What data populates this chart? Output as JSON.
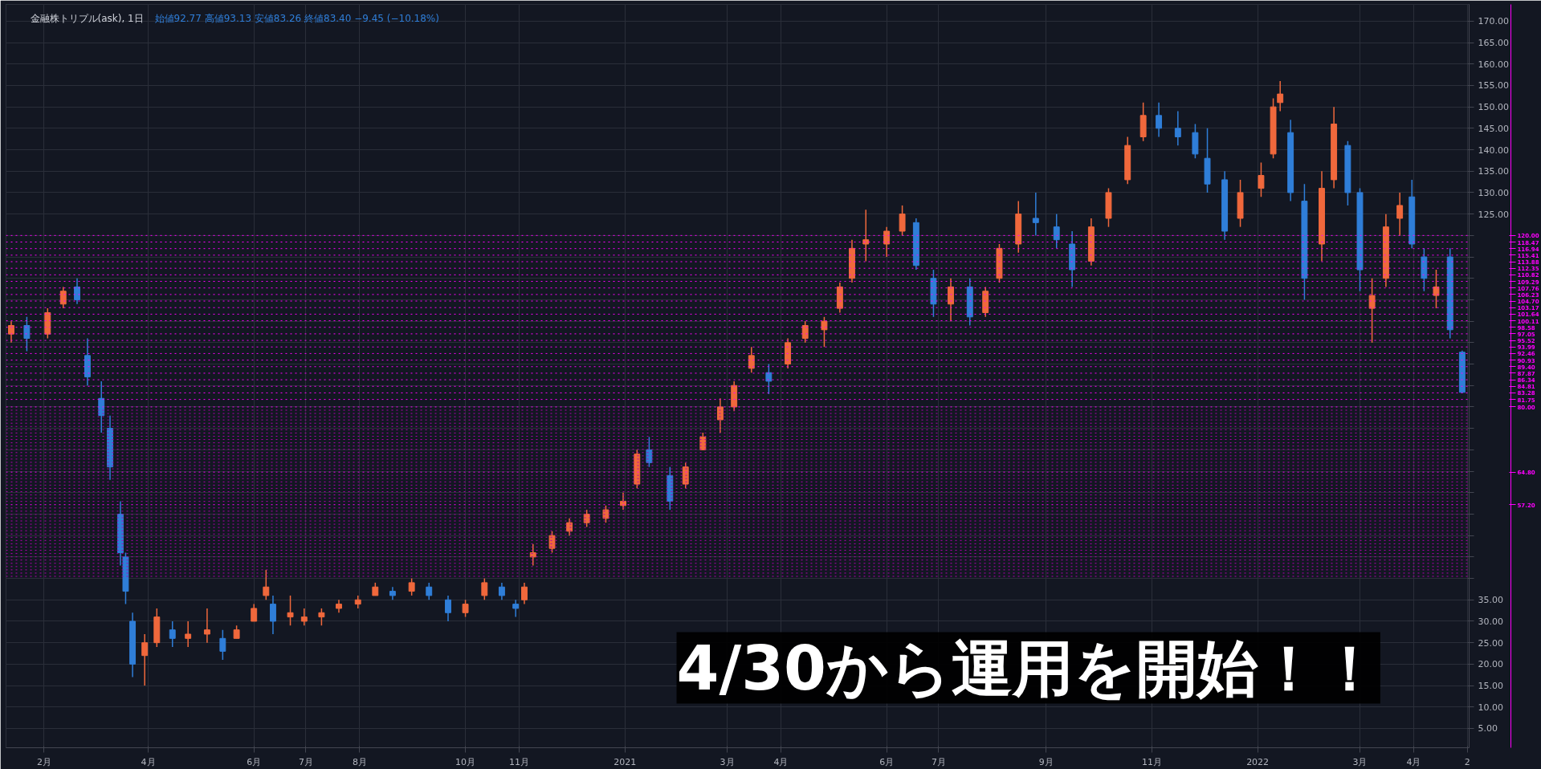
{
  "chart_data": {
    "type": "candlestick",
    "title": "金融株トリプル(ask), 1日",
    "subtitle": "始値92.77 高値93.13 安値83.26 終値83.40 −9.45 (−10.18%)",
    "annotations": [
      "4/30から運用を開始！！"
    ],
    "x": [
      "2020-01-13",
      "2020-01-22",
      "2020-02-03",
      "2020-02-12",
      "2020-02-20",
      "2020-02-26",
      "2020-03-05",
      "2020-03-10",
      "2020-03-16",
      "2020-03-19",
      "2020-03-23",
      "2020-03-30",
      "2020-04-06",
      "2020-04-15",
      "2020-04-24",
      "2020-05-05",
      "2020-05-14",
      "2020-05-22",
      "2020-06-01",
      "2020-06-08",
      "2020-06-12",
      "2020-06-22",
      "2020-06-30",
      "2020-07-10",
      "2020-07-20",
      "2020-07-31",
      "2020-08-10",
      "2020-08-20",
      "2020-08-31",
      "2020-09-10",
      "2020-09-21",
      "2020-10-01",
      "2020-10-12",
      "2020-10-22",
      "2020-10-30",
      "2020-11-04",
      "2020-11-09",
      "2020-11-20",
      "2020-11-30",
      "2020-12-10",
      "2020-12-21",
      "2020-12-31",
      "2021-01-08",
      "2021-01-15",
      "2021-01-27",
      "2021-02-05",
      "2021-02-15",
      "2021-02-25",
      "2021-03-05",
      "2021-03-15",
      "2021-03-25",
      "2021-04-05",
      "2021-04-15",
      "2021-04-26",
      "2021-05-05",
      "2021-05-12",
      "2021-05-20",
      "2021-06-01",
      "2021-06-10",
      "2021-06-18",
      "2021-06-28",
      "2021-07-08",
      "2021-07-19",
      "2021-07-28",
      "2021-08-05",
      "2021-08-16",
      "2021-08-26",
      "2021-09-07",
      "2021-09-16",
      "2021-09-27",
      "2021-10-07",
      "2021-10-18",
      "2021-10-27",
      "2021-11-05",
      "2021-11-16",
      "2021-11-26",
      "2021-12-03",
      "2021-12-13",
      "2021-12-22",
      "2022-01-03",
      "2022-01-10",
      "2022-01-14",
      "2022-01-20",
      "2022-01-28",
      "2022-02-07",
      "2022-02-14",
      "2022-02-22",
      "2022-03-01",
      "2022-03-08",
      "2022-03-16",
      "2022-03-24",
      "2022-03-31",
      "2022-04-07",
      "2022-04-14",
      "2022-04-22",
      "2022-04-29"
    ],
    "ohlc": [
      [
        97,
        100,
        95,
        99
      ],
      [
        99,
        101,
        93,
        96
      ],
      [
        97,
        103,
        96,
        102
      ],
      [
        104,
        108,
        103,
        107
      ],
      [
        108,
        110,
        104,
        105
      ],
      [
        92,
        96,
        85,
        87
      ],
      [
        82,
        86,
        74,
        78
      ],
      [
        75,
        78,
        63,
        66
      ],
      [
        55,
        58,
        43,
        46
      ],
      [
        45,
        46,
        34,
        37
      ],
      [
        30,
        32,
        17,
        20
      ],
      [
        22,
        27,
        15,
        25
      ],
      [
        25,
        33,
        24,
        31
      ],
      [
        28,
        30,
        24,
        26
      ],
      [
        26,
        30,
        24,
        27
      ],
      [
        27,
        33,
        25,
        28
      ],
      [
        26,
        28,
        21,
        23
      ],
      [
        26,
        29,
        26,
        28
      ],
      [
        30,
        34,
        30,
        33
      ],
      [
        36,
        42,
        35,
        38
      ],
      [
        34,
        36,
        27,
        30
      ],
      [
        31,
        36,
        29,
        32
      ],
      [
        30,
        33,
        29,
        31
      ],
      [
        31,
        33,
        29,
        32
      ],
      [
        33,
        35,
        32,
        34
      ],
      [
        34,
        36,
        33,
        35
      ],
      [
        36,
        39,
        36,
        38
      ],
      [
        37,
        38,
        35,
        36
      ],
      [
        37,
        40,
        36,
        39
      ],
      [
        38,
        39,
        35,
        36
      ],
      [
        35,
        36,
        30,
        32
      ],
      [
        32,
        35,
        31,
        34
      ],
      [
        36,
        40,
        35,
        39
      ],
      [
        38,
        39,
        35,
        36
      ],
      [
        34,
        35,
        31,
        33
      ],
      [
        35,
        39,
        34,
        38
      ],
      [
        45,
        48,
        43,
        46
      ],
      [
        47,
        51,
        46,
        50
      ],
      [
        51,
        54,
        50,
        53
      ],
      [
        53,
        56,
        52,
        55
      ],
      [
        54,
        57,
        53,
        56
      ],
      [
        57,
        60,
        56,
        58
      ],
      [
        62,
        70,
        61,
        69
      ],
      [
        70,
        73,
        66,
        67
      ],
      [
        64,
        66,
        56,
        58
      ],
      [
        62,
        67,
        61,
        66
      ],
      [
        70,
        74,
        70,
        73
      ],
      [
        77,
        82,
        74,
        80
      ],
      [
        80,
        86,
        79,
        85
      ],
      [
        89,
        94,
        88,
        92
      ],
      [
        88,
        90,
        83,
        86
      ],
      [
        90,
        96,
        89,
        95
      ],
      [
        96,
        100,
        95,
        99
      ],
      [
        98,
        101,
        94,
        100
      ],
      [
        103,
        109,
        102,
        108
      ],
      [
        110,
        119,
        109,
        117
      ],
      [
        118,
        126,
        114,
        119
      ],
      [
        118,
        122,
        115,
        121
      ],
      [
        121,
        127,
        120,
        125
      ],
      [
        123,
        124,
        112,
        113
      ],
      [
        110,
        112,
        101,
        104
      ],
      [
        104,
        110,
        100,
        108
      ],
      [
        108,
        110,
        99,
        101
      ],
      [
        102,
        108,
        101,
        107
      ],
      [
        110,
        118,
        109,
        117
      ],
      [
        118,
        128,
        116,
        125
      ],
      [
        124,
        130,
        120,
        123
      ],
      [
        122,
        125,
        117,
        119
      ],
      [
        118,
        121,
        108,
        112
      ],
      [
        114,
        124,
        113,
        122
      ],
      [
        124,
        131,
        122,
        130
      ],
      [
        133,
        143,
        132,
        141
      ],
      [
        143,
        151,
        142,
        148
      ],
      [
        148,
        151,
        143,
        145
      ],
      [
        145,
        149,
        141,
        143
      ],
      [
        144,
        146,
        138,
        139
      ],
      [
        138,
        145,
        130,
        132
      ],
      [
        133,
        135,
        119,
        121
      ],
      [
        124,
        133,
        122,
        130
      ],
      [
        131,
        137,
        129,
        134
      ],
      [
        139,
        152,
        138,
        150
      ],
      [
        151,
        156,
        149,
        153
      ],
      [
        144,
        147,
        128,
        130
      ],
      [
        128,
        132,
        105,
        110
      ],
      [
        118,
        135,
        114,
        131
      ],
      [
        133,
        150,
        131,
        146
      ],
      [
        141,
        142,
        127,
        130
      ],
      [
        130,
        131,
        107,
        112
      ],
      [
        103,
        110,
        95,
        106
      ],
      [
        110,
        125,
        108,
        122
      ],
      [
        124,
        130,
        120,
        127
      ],
      [
        129,
        133,
        117,
        118
      ],
      [
        115,
        117,
        107,
        110
      ],
      [
        106,
        112,
        103,
        108
      ],
      [
        115,
        117,
        96,
        98
      ],
      [
        92.77,
        93.13,
        83.26,
        83.4
      ]
    ],
    "colors": [
      "#f0683c",
      "#2f7ed8",
      "#f0683c",
      "#f0683c",
      "#2f7ed8",
      "#2f7ed8",
      "#2f7ed8",
      "#2f7ed8",
      "#2f7ed8",
      "#2f7ed8",
      "#2f7ed8",
      "#f0683c",
      "#f0683c",
      "#2f7ed8",
      "#f0683c",
      "#f0683c",
      "#2f7ed8",
      "#f0683c",
      "#f0683c",
      "#f0683c",
      "#2f7ed8",
      "#f0683c",
      "#f0683c",
      "#f0683c",
      "#f0683c",
      "#f0683c",
      "#f0683c",
      "#2f7ed8",
      "#f0683c",
      "#2f7ed8",
      "#2f7ed8",
      "#f0683c",
      "#f0683c",
      "#2f7ed8",
      "#2f7ed8",
      "#f0683c",
      "#f0683c",
      "#f0683c",
      "#f0683c",
      "#f0683c",
      "#f0683c",
      "#f0683c",
      "#f0683c",
      "#2f7ed8",
      "#2f7ed8",
      "#f0683c",
      "#f0683c",
      "#f0683c",
      "#f0683c",
      "#f0683c",
      "#2f7ed8",
      "#f0683c",
      "#f0683c",
      "#f0683c",
      "#f0683c",
      "#f0683c",
      "#f0683c",
      "#f0683c",
      "#f0683c",
      "#2f7ed8",
      "#2f7ed8",
      "#f0683c",
      "#2f7ed8",
      "#f0683c",
      "#f0683c",
      "#f0683c",
      "#2f7ed8",
      "#2f7ed8",
      "#2f7ed8",
      "#f0683c",
      "#f0683c",
      "#f0683c",
      "#f0683c",
      "#2f7ed8",
      "#2f7ed8",
      "#2f7ed8",
      "#2f7ed8",
      "#2f7ed8",
      "#f0683c",
      "#f0683c",
      "#f0683c",
      "#f0683c",
      "#2f7ed8",
      "#2f7ed8",
      "#f0683c",
      "#f0683c",
      "#2f7ed8",
      "#2f7ed8",
      "#f0683c",
      "#f0683c",
      "#f0683c",
      "#2f7ed8",
      "#2f7ed8",
      "#f0683c",
      "#2f7ed8",
      "#2f7ed8"
    ],
    "xlim": [
      "2020-01-10",
      "2022-05-03"
    ],
    "xticks": [
      {
        "value": "2020-02-01",
        "label": "2月"
      },
      {
        "value": "2020-04-01",
        "label": "4月"
      },
      {
        "value": "2020-06-01",
        "label": "6月"
      },
      {
        "value": "2020-07-01",
        "label": "7月"
      },
      {
        "value": "2020-08-01",
        "label": "8月"
      },
      {
        "value": "2020-10-01",
        "label": "10月"
      },
      {
        "value": "2020-11-01",
        "label": "11月"
      },
      {
        "value": "2021-01-01",
        "label": "2021"
      },
      {
        "value": "2021-03-01",
        "label": "3月"
      },
      {
        "value": "2021-04-01",
        "label": "4月"
      },
      {
        "value": "2021-06-01",
        "label": "6月"
      },
      {
        "value": "2021-07-01",
        "label": "7月"
      },
      {
        "value": "2021-09-01",
        "label": "9月"
      },
      {
        "value": "2021-11-01",
        "label": "11月"
      },
      {
        "value": "2022-01-01",
        "label": "2022"
      },
      {
        "value": "2022-03-01",
        "label": "3月"
      },
      {
        "value": "2022-04-01",
        "label": "4月"
      },
      {
        "value": "2022-05-02",
        "label": "2"
      }
    ],
    "ylim": [
      0.5,
      173.9
    ],
    "yticks": [
      {
        "value": 5,
        "label": "5.00"
      },
      {
        "value": 10,
        "label": "10.00"
      },
      {
        "value": 15,
        "label": "15.00"
      },
      {
        "value": 20,
        "label": "20.00"
      },
      {
        "value": 25,
        "label": "25.00"
      },
      {
        "value": 30,
        "label": "30.00"
      },
      {
        "value": 35,
        "label": "35.00"
      },
      {
        "value": 40,
        "label": null
      },
      {
        "value": 45,
        "label": null
      },
      {
        "value": 50,
        "label": null
      },
      {
        "value": 55,
        "label": null
      },
      {
        "value": 60,
        "label": null
      },
      {
        "value": 65,
        "label": null
      },
      {
        "value": 70,
        "label": null
      },
      {
        "value": 75,
        "label": null
      },
      {
        "value": 80,
        "label": null
      },
      {
        "value": 85,
        "label": null
      },
      {
        "value": 90,
        "label": null
      },
      {
        "value": 95,
        "label": null
      },
      {
        "value": 100,
        "label": null
      },
      {
        "value": 105,
        "label": null
      },
      {
        "value": 110,
        "label": null
      },
      {
        "value": 115,
        "label": null
      },
      {
        "value": 120,
        "label": null
      },
      {
        "value": 125,
        "label": "125.00"
      },
      {
        "value": 130,
        "label": "130.00"
      },
      {
        "value": 135,
        "label": "135.00"
      },
      {
        "value": 140,
        "label": "140.00"
      },
      {
        "value": 145,
        "label": "145.00"
      },
      {
        "value": 150,
        "label": "150.00"
      },
      {
        "value": 155,
        "label": "155.00"
      },
      {
        "value": 160,
        "label": "160.00"
      },
      {
        "value": 165,
        "label": "165.00"
      },
      {
        "value": 170,
        "label": "170.00"
      }
    ],
    "grid": true,
    "ref_lines": [
      {
        "axis": "y",
        "value": 120,
        "label": "120.00",
        "color": "#ff00ff",
        "line_style": "dotted"
      },
      {
        "axis": "y",
        "value": 118.47,
        "label": "118.47",
        "color": "#ff00ff",
        "line_style": "dotted"
      },
      {
        "axis": "y",
        "value": 116.94,
        "label": "116.94",
        "color": "#ff00ff",
        "line_style": "dotted"
      },
      {
        "axis": "y",
        "value": 115.41,
        "label": "115.41",
        "color": "#ff00ff",
        "line_style": "dotted"
      },
      {
        "axis": "y",
        "value": 113.88,
        "label": "113.88",
        "color": "#ff00ff",
        "line_style": "dotted"
      },
      {
        "axis": "y",
        "value": 112.35,
        "label": "112.35",
        "color": "#ff00ff",
        "line_style": "dotted"
      },
      {
        "axis": "y",
        "value": 110.82,
        "label": "110.82",
        "color": "#ff00ff",
        "line_style": "dotted"
      },
      {
        "axis": "y",
        "value": 109.29,
        "label": "109.29",
        "color": "#ff00ff",
        "line_style": "dotted"
      },
      {
        "axis": "y",
        "value": 107.76,
        "label": "107.76",
        "color": "#ff00ff",
        "line_style": "dotted"
      },
      {
        "axis": "y",
        "value": 106.23,
        "label": "106.23",
        "color": "#ff00ff",
        "line_style": "dotted"
      },
      {
        "axis": "y",
        "value": 104.7,
        "label": "104.70",
        "color": "#ff00ff",
        "line_style": "dotted"
      },
      {
        "axis": "y",
        "value": 103.17,
        "label": "103.17",
        "color": "#ff00ff",
        "line_style": "dotted"
      },
      {
        "axis": "y",
        "value": 101.64,
        "label": "101.64",
        "color": "#ff00ff",
        "line_style": "dotted"
      },
      {
        "axis": "y",
        "value": 100.11,
        "label": "100.11",
        "color": "#ff00ff",
        "line_style": "dotted"
      },
      {
        "axis": "y",
        "value": 98.58,
        "label": "98.58",
        "color": "#ff00ff",
        "line_style": "dotted"
      },
      {
        "axis": "y",
        "value": 97.05,
        "label": "97.05",
        "color": "#ff00ff",
        "line_style": "dotted"
      },
      {
        "axis": "y",
        "value": 95.52,
        "label": "95.52",
        "color": "#ff00ff",
        "line_style": "dotted"
      },
      {
        "axis": "y",
        "value": 93.99,
        "label": "93.99",
        "color": "#ff00ff",
        "line_style": "dotted"
      },
      {
        "axis": "y",
        "value": 92.46,
        "label": "92.46",
        "color": "#ff00ff",
        "line_style": "dotted"
      },
      {
        "axis": "y",
        "value": 90.93,
        "label": "90.93",
        "color": "#ff00ff",
        "line_style": "dotted"
      },
      {
        "axis": "y",
        "value": 89.4,
        "label": "89.40",
        "color": "#ff00ff",
        "line_style": "dotted"
      },
      {
        "axis": "y",
        "value": 87.87,
        "label": "87.87",
        "color": "#ff00ff",
        "line_style": "dotted"
      },
      {
        "axis": "y",
        "value": 86.34,
        "label": "86.34",
        "color": "#ff00ff",
        "line_style": "dotted"
      },
      {
        "axis": "y",
        "value": 84.81,
        "label": "84.81",
        "color": "#ff00ff",
        "line_style": "dotted"
      },
      {
        "axis": "y",
        "value": 83.28,
        "label": "83.28",
        "color": "#ff00ff",
        "line_style": "dotted"
      },
      {
        "axis": "y",
        "value": 81.75,
        "label": "81.75",
        "color": "#ff00ff",
        "line_style": "dotted"
      },
      {
        "axis": "y",
        "value": 80,
        "label": "80.00",
        "color": "#ff00ff",
        "line_style": "dotted"
      },
      {
        "axis": "y",
        "value": 79.24,
        "label": null,
        "color": "#b000b0",
        "line_style": "dotted"
      },
      {
        "axis": "y",
        "value": 78.48,
        "label": null,
        "color": "#b000b0",
        "line_style": "dotted"
      },
      {
        "axis": "y",
        "value": 77.72,
        "label": null,
        "color": "#b000b0",
        "line_style": "dotted"
      },
      {
        "axis": "y",
        "value": 76.96,
        "label": null,
        "color": "#b000b0",
        "line_style": "dotted"
      },
      {
        "axis": "y",
        "value": 76.2,
        "label": null,
        "color": "#b000b0",
        "line_style": "dotted"
      },
      {
        "axis": "y",
        "value": 75.44,
        "label": null,
        "color": "#b000b0",
        "line_style": "dotted"
      },
      {
        "axis": "y",
        "value": 74.68,
        "label": null,
        "color": "#b000b0",
        "line_style": "dotted"
      },
      {
        "axis": "y",
        "value": 73.92,
        "label": null,
        "color": "#b000b0",
        "line_style": "dotted"
      },
      {
        "axis": "y",
        "value": 73.16,
        "label": null,
        "color": "#b000b0",
        "line_style": "dotted"
      },
      {
        "axis": "y",
        "value": 72.4,
        "label": null,
        "color": "#b000b0",
        "line_style": "dotted"
      },
      {
        "axis": "y",
        "value": 71.64,
        "label": null,
        "color": "#b000b0",
        "line_style": "dotted"
      },
      {
        "axis": "y",
        "value": 70.88,
        "label": null,
        "color": "#b000b0",
        "line_style": "dotted"
      },
      {
        "axis": "y",
        "value": 70.12,
        "label": null,
        "color": "#b000b0",
        "line_style": "dotted"
      },
      {
        "axis": "y",
        "value": 69.36,
        "label": null,
        "color": "#b000b0",
        "line_style": "dotted"
      },
      {
        "axis": "y",
        "value": 68.6,
        "label": null,
        "color": "#b000b0",
        "line_style": "dotted"
      },
      {
        "axis": "y",
        "value": 67.84,
        "label": null,
        "color": "#b000b0",
        "line_style": "dotted"
      },
      {
        "axis": "y",
        "value": 67.08,
        "label": null,
        "color": "#b000b0",
        "line_style": "dotted"
      },
      {
        "axis": "y",
        "value": 66.32,
        "label": null,
        "color": "#b000b0",
        "line_style": "dotted"
      },
      {
        "axis": "y",
        "value": 65.56,
        "label": null,
        "color": "#b000b0",
        "line_style": "dotted"
      },
      {
        "axis": "y",
        "value": 64.8,
        "label": "64.80",
        "color": "#ff00ff",
        "line_style": "dotted"
      },
      {
        "axis": "y",
        "value": 64.04,
        "label": null,
        "color": "#b000b0",
        "line_style": "dotted"
      },
      {
        "axis": "y",
        "value": 63.28,
        "label": null,
        "color": "#b000b0",
        "line_style": "dotted"
      },
      {
        "axis": "y",
        "value": 62.52,
        "label": null,
        "color": "#b000b0",
        "line_style": "dotted"
      },
      {
        "axis": "y",
        "value": 61.76,
        "label": null,
        "color": "#b000b0",
        "line_style": "dotted"
      },
      {
        "axis": "y",
        "value": 61.0,
        "label": null,
        "color": "#b000b0",
        "line_style": "dotted"
      },
      {
        "axis": "y",
        "value": 60.24,
        "label": null,
        "color": "#b000b0",
        "line_style": "dotted"
      },
      {
        "axis": "y",
        "value": 59.48,
        "label": null,
        "color": "#b000b0",
        "line_style": "dotted"
      },
      {
        "axis": "y",
        "value": 58.72,
        "label": null,
        "color": "#b000b0",
        "line_style": "dotted"
      },
      {
        "axis": "y",
        "value": 57.96,
        "label": null,
        "color": "#b000b0",
        "line_style": "dotted"
      },
      {
        "axis": "y",
        "value": 57.2,
        "label": "57.20",
        "color": "#ff00ff",
        "line_style": "dotted"
      },
      {
        "axis": "y",
        "value": 56.44,
        "label": null,
        "color": "#b000b0",
        "line_style": "dotted"
      },
      {
        "axis": "y",
        "value": 55.68,
        "label": null,
        "color": "#b000b0",
        "line_style": "dotted"
      },
      {
        "axis": "y",
        "value": 54.92,
        "label": null,
        "color": "#b000b0",
        "line_style": "dotted"
      },
      {
        "axis": "y",
        "value": 54.16,
        "label": null,
        "color": "#b000b0",
        "line_style": "dotted"
      },
      {
        "axis": "y",
        "value": 53.4,
        "label": null,
        "color": "#b000b0",
        "line_style": "dotted"
      },
      {
        "axis": "y",
        "value": 52.64,
        "label": null,
        "color": "#b000b0",
        "line_style": "dotted"
      },
      {
        "axis": "y",
        "value": 51.88,
        "label": null,
        "color": "#b000b0",
        "line_style": "dotted"
      },
      {
        "axis": "y",
        "value": 51.12,
        "label": null,
        "color": "#b000b0",
        "line_style": "dotted"
      },
      {
        "axis": "y",
        "value": 50.36,
        "label": null,
        "color": "#b000b0",
        "line_style": "dotted"
      },
      {
        "axis": "y",
        "value": 49.6,
        "label": null,
        "color": "#b000b0",
        "line_style": "dotted"
      },
      {
        "axis": "y",
        "value": 48.84,
        "label": null,
        "color": "#b000b0",
        "line_style": "dotted"
      },
      {
        "axis": "y",
        "value": 48.08,
        "label": null,
        "color": "#b000b0",
        "line_style": "dotted"
      },
      {
        "axis": "y",
        "value": 47.32,
        "label": null,
        "color": "#b000b0",
        "line_style": "dotted"
      },
      {
        "axis": "y",
        "value": 46.56,
        "label": null,
        "color": "#b000b0",
        "line_style": "dotted"
      },
      {
        "axis": "y",
        "value": 45.8,
        "label": null,
        "color": "#b000b0",
        "line_style": "dotted"
      },
      {
        "axis": "y",
        "value": 45.04,
        "label": null,
        "color": "#b000b0",
        "line_style": "dotted"
      },
      {
        "axis": "y",
        "value": 44.28,
        "label": null,
        "color": "#b000b0",
        "line_style": "dotted"
      },
      {
        "axis": "y",
        "value": 43.52,
        "label": null,
        "color": "#b000b0",
        "line_style": "dotted"
      },
      {
        "axis": "y",
        "value": 42.76,
        "label": null,
        "color": "#b000b0",
        "line_style": "dotted"
      },
      {
        "axis": "y",
        "value": 42.0,
        "label": null,
        "color": "#b000b0",
        "line_style": "dotted"
      },
      {
        "axis": "y",
        "value": 41.24,
        "label": null,
        "color": "#b000b0",
        "line_style": "dotted"
      },
      {
        "axis": "y",
        "value": 40.48,
        "label": null,
        "color": "#b000b0",
        "line_style": "dotted"
      }
    ]
  }
}
